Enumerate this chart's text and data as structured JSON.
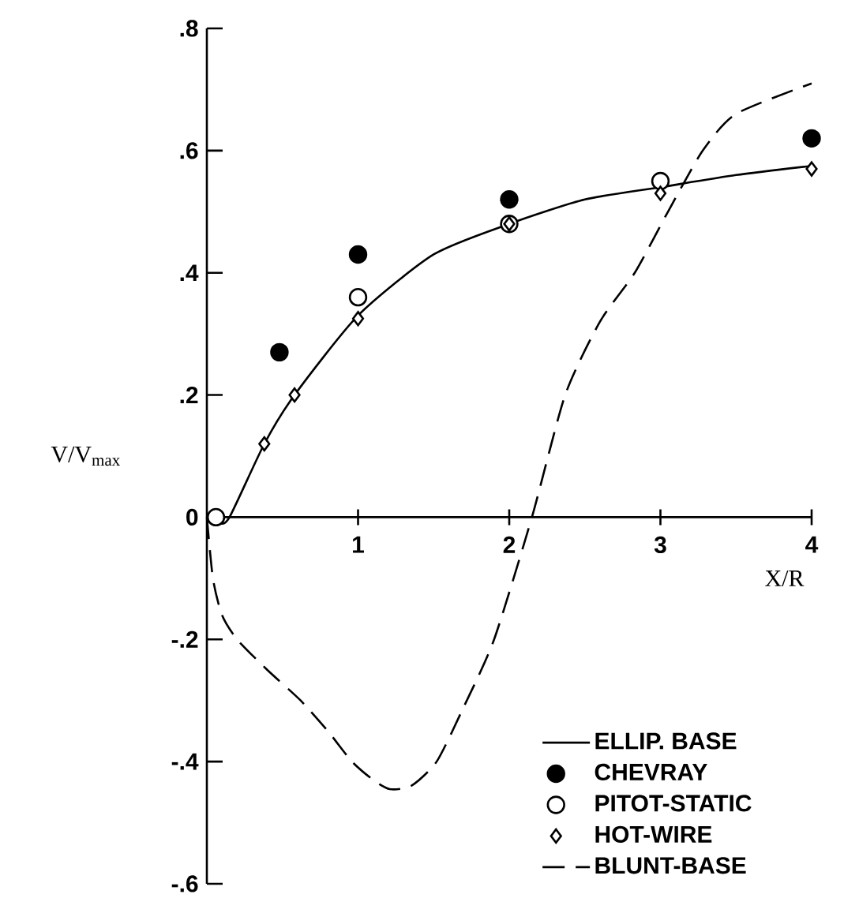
{
  "chart_data": {
    "type": "line",
    "xlabel": "X/R",
    "ylabel": "V/V$_{max}$",
    "xlim": [
      0,
      4
    ],
    "ylim": [
      -0.6,
      0.8
    ],
    "xticks": [
      1,
      2,
      3,
      4
    ],
    "yticks": [
      {
        "value": -0.6,
        "label": "-.6"
      },
      {
        "value": -0.4,
        "label": "-.4"
      },
      {
        "value": -0.2,
        "label": "-.2"
      },
      {
        "value": 0,
        "label": "0"
      },
      {
        "value": 0.2,
        "label": ".2"
      },
      {
        "value": 0.4,
        "label": ".4"
      },
      {
        "value": 0.6,
        "label": ".6"
      },
      {
        "value": 0.8,
        "label": ".8"
      }
    ],
    "grid": false,
    "legend": "bottom right",
    "series": [
      {
        "name": "ELLIP. BASE",
        "color": "#000000",
        "marker": "none",
        "line_style": "solid",
        "x": [
          0,
          0.08,
          0.15,
          0.38,
          0.58,
          1,
          1.5,
          2,
          2.5,
          3,
          3.5,
          4
        ],
        "values": [
          0,
          -0.01,
          0,
          0.12,
          0.2,
          0.33,
          0.43,
          0.48,
          0.52,
          0.54,
          0.56,
          0.575
        ]
      },
      {
        "name": "CHEVRAY",
        "type": "scatter",
        "color": "#000000",
        "marker": "circle",
        "x": [
          0.48,
          1,
          2,
          4
        ],
        "values": [
          0.27,
          0.43,
          0.52,
          0.62
        ]
      },
      {
        "name": "PITOT-STATIC",
        "type": "scatter",
        "color": "#000000",
        "marker": "circle",
        "x": [
          0.06,
          1,
          2,
          3
        ],
        "values": [
          0,
          0.36,
          0.48,
          0.55
        ]
      },
      {
        "name": "HOT-WIRE",
        "type": "scatter",
        "color": "#000000",
        "marker": "diamond",
        "x": [
          0.38,
          0.58,
          1,
          2,
          3,
          4
        ],
        "values": [
          0.12,
          0.2,
          0.325,
          0.48,
          0.53,
          0.57
        ]
      },
      {
        "name": "BLUNT-BASE",
        "color": "#000000",
        "marker": "none",
        "line_style": "dashed",
        "x": [
          0,
          0.04,
          0.1,
          0.2,
          0.4,
          0.62,
          0.8,
          0.96,
          1.1,
          1.21,
          1.35,
          1.52,
          1.7,
          1.9,
          2.15,
          2.37,
          2.6,
          2.83,
          3.05,
          3.28,
          3.5,
          4
        ],
        "values": [
          0,
          -0.1,
          -0.16,
          -0.2,
          -0.25,
          -0.3,
          -0.35,
          -0.4,
          -0.43,
          -0.445,
          -0.44,
          -0.4,
          -0.31,
          -0.2,
          0,
          0.2,
          0.32,
          0.4,
          0.5,
          0.6,
          0.66,
          0.71
        ]
      }
    ]
  }
}
